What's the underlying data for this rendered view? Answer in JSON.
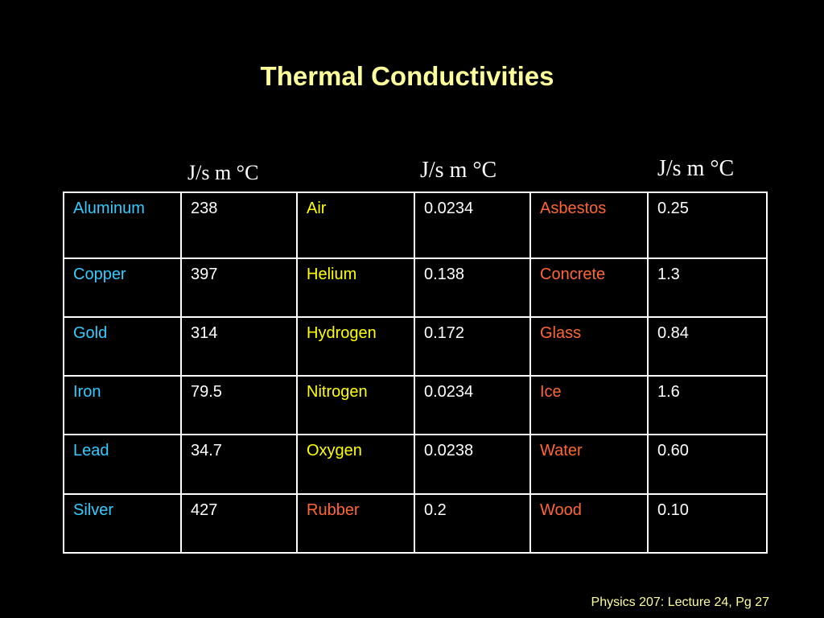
{
  "slide": {
    "title": "Thermal Conductivities",
    "units": [
      "J/s m °C",
      "J/s m °C",
      "J/s m °C"
    ],
    "footer": "Physics 207: Lecture 24, Pg 27"
  },
  "colors": {
    "title": "#ffff99",
    "metals": "#33ccff",
    "gases": "#ffff00",
    "solids": "#ff6633",
    "values": "#ffffff",
    "background": "#000000"
  },
  "table": {
    "rows": [
      {
        "c1": "Aluminum",
        "v1": "238",
        "c2": "Air",
        "v2": "0.0234",
        "c3": "Asbestos",
        "v3": "0.25"
      },
      {
        "c1": "Copper",
        "v1": "397",
        "c2": "Helium",
        "v2": "0.138",
        "c3": "Concrete",
        "v3": "1.3"
      },
      {
        "c1": "Gold",
        "v1": "314",
        "c2": "Hydrogen",
        "v2": "0.172",
        "c3": "Glass",
        "v3": "0.84"
      },
      {
        "c1": "Iron",
        "v1": "79.5",
        "c2": "Nitrogen",
        "v2": "0.0234",
        "c3": "Ice",
        "v3": "1.6"
      },
      {
        "c1": "Lead",
        "v1": "34.7",
        "c2": "Oxygen",
        "v2": "0.0238",
        "c3": "Water",
        "v3": "0.60"
      },
      {
        "c1": "Silver",
        "v1": "427",
        "c2": "Rubber",
        "v2": "0.2",
        "c3": "Wood",
        "v3": "0.10"
      }
    ]
  }
}
